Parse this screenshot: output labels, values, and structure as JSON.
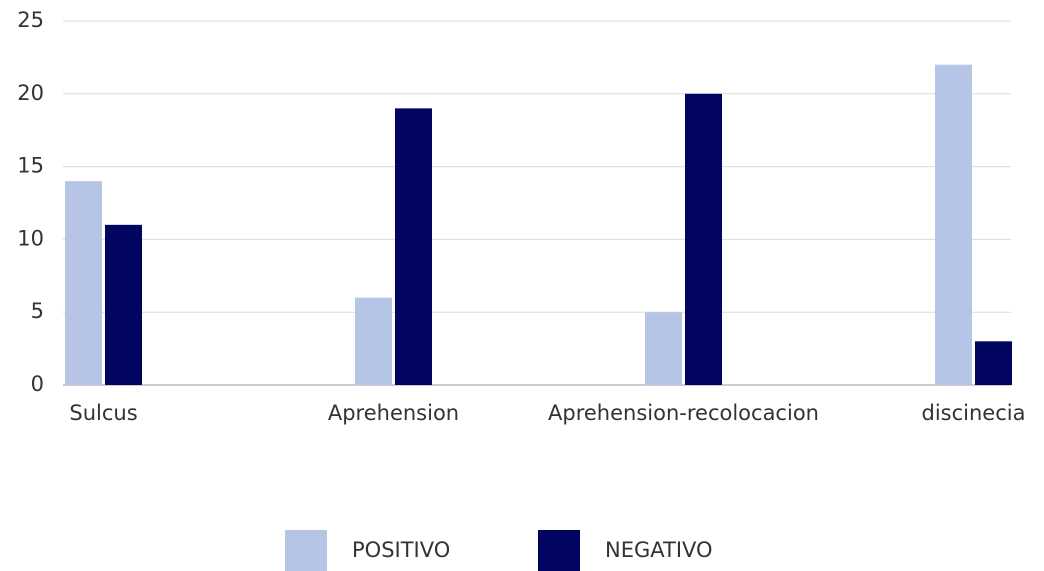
{
  "chart_data": {
    "type": "bar",
    "categories": [
      "Sulcus",
      "Aprehension",
      "Aprehension-recolocacion",
      "discinecia"
    ],
    "series": [
      {
        "name": "POSITIVO",
        "color": "#b6c5e5",
        "values": [
          14,
          6,
          5,
          22
        ]
      },
      {
        "name": "NEGATIVO",
        "color": "#020560",
        "values": [
          11,
          19,
          20,
          3
        ]
      }
    ],
    "ylim": [
      0,
      25
    ],
    "yticks": [
      0,
      5,
      10,
      15,
      20,
      25
    ],
    "grid": true,
    "legend": "bottom"
  }
}
